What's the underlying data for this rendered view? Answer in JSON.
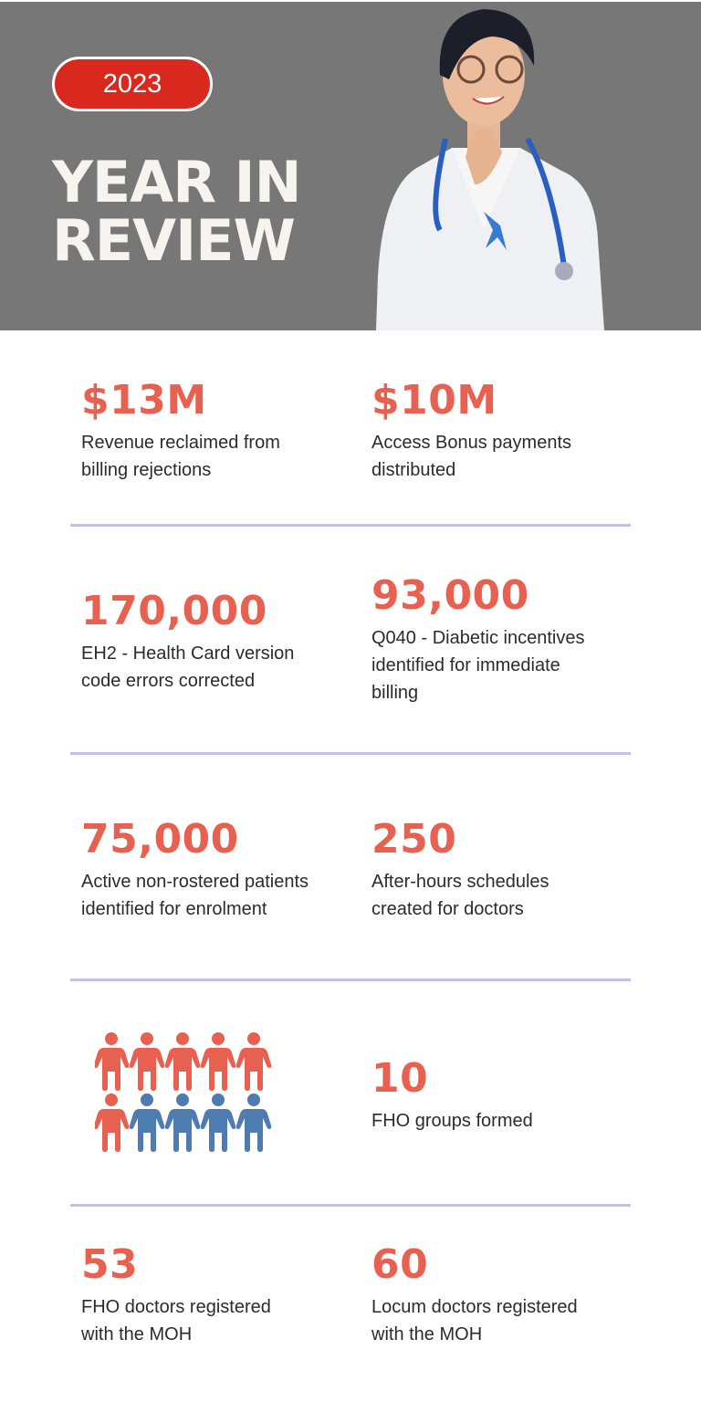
{
  "header": {
    "year_badge": "2023",
    "title_line1": "YEAR IN",
    "title_line2": "REVIEW",
    "background_color": "#777777",
    "badge_color": "#d9281e"
  },
  "accent_color": "#e8604f",
  "stats": [
    {
      "value": "$13M",
      "label_line1": "Revenue reclaimed from",
      "label_line2": "billing rejections"
    },
    {
      "value": "$10M",
      "label_line1": "Access Bonus payments",
      "label_line2": "distributed"
    },
    {
      "value": "170,000",
      "label_line1": "EH2 - Health Card version",
      "label_line2": "code errors corrected"
    },
    {
      "value": "93,000",
      "label_line1": "Q040 - Diabetic incentives",
      "label_line2": "identified for immediate",
      "label_line3": "billing"
    },
    {
      "value": "75,000",
      "label_line1": "Active non-rostered patients",
      "label_line2": "identified for enrolment"
    },
    {
      "value": "250",
      "label_line1": "After-hours schedules",
      "label_line2": "created for doctors"
    },
    {
      "value": "10",
      "label_line1": "FHO groups formed"
    },
    {
      "value": "53",
      "label_line1": "FHO doctors registered",
      "label_line2": "with the MOH"
    },
    {
      "value": "60",
      "label_line1": "Locum doctors registered",
      "label_line2": "with the MOH"
    }
  ],
  "people_icon_grid": {
    "total": 10,
    "highlighted_red": 6,
    "blue": 4,
    "red_color": "#e8604f",
    "blue_color": "#4f7cb0"
  }
}
